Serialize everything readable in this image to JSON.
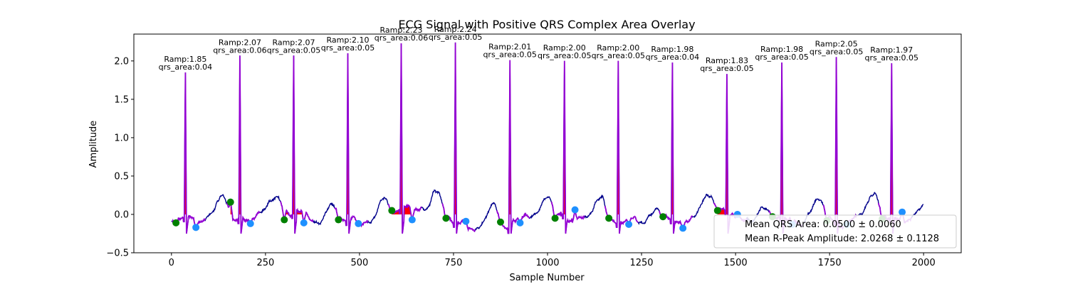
{
  "chart_data": {
    "type": "line",
    "title": "ECG Signal with Positive QRS Complex Area Overlay",
    "xlabel": "Sample Number",
    "ylabel": "Amplitude",
    "xlim": [
      -100,
      2100
    ],
    "ylim": [
      -0.5,
      2.35
    ],
    "xticks": [
      0,
      250,
      500,
      750,
      1000,
      1250,
      1500,
      1750,
      2000
    ],
    "yticks": [
      -0.5,
      0.0,
      0.5,
      1.0,
      1.5,
      2.0
    ],
    "xtick_labels": [
      "0",
      "250",
      "500",
      "750",
      "1000",
      "1250",
      "1500",
      "1750",
      "2000"
    ],
    "ytick_labels": [
      "−0.5",
      "0.0",
      "0.5",
      "1.0",
      "1.5",
      "2.0"
    ],
    "grid": false,
    "colors": {
      "signal": "#00008b",
      "qrs_segment": "#9400d3",
      "qrs_area": "#ff0000",
      "onset_marker": "#008000",
      "offset_marker": "#1e90ff"
    },
    "beats": [
      {
        "r_x": 37,
        "r_amp": 1.85,
        "area": 0.04,
        "onset_x": 12,
        "onset_y": -0.11,
        "offset_x": 65,
        "offset_y": -0.17,
        "label_amp": "Ramp:1.85",
        "label_area": "qrs_area:0.04"
      },
      {
        "r_x": 182,
        "r_amp": 2.07,
        "area": 0.06,
        "onset_x": 157,
        "onset_y": 0.16,
        "offset_x": 210,
        "offset_y": -0.12,
        "label_amp": "Ramp:2.07",
        "label_area": "qrs_area:0.06"
      },
      {
        "r_x": 325,
        "r_amp": 2.07,
        "area": 0.05,
        "onset_x": 300,
        "onset_y": -0.07,
        "offset_x": 352,
        "offset_y": -0.11,
        "label_amp": "Ramp:2.07",
        "label_area": "qrs_area:0.05"
      },
      {
        "r_x": 469,
        "r_amp": 2.1,
        "area": 0.05,
        "onset_x": 444,
        "onset_y": -0.07,
        "offset_x": 497,
        "offset_y": -0.12,
        "label_amp": "Ramp:2.10",
        "label_area": "qrs_area:0.05"
      },
      {
        "r_x": 611,
        "r_amp": 2.23,
        "area": 0.06,
        "onset_x": 586,
        "onset_y": 0.05,
        "offset_x": 640,
        "offset_y": -0.07,
        "label_amp": "Ramp:2.23",
        "label_area": "qrs_area:0.06"
      },
      {
        "r_x": 755,
        "r_amp": 2.24,
        "area": 0.05,
        "onset_x": 730,
        "onset_y": -0.05,
        "offset_x": 783,
        "offset_y": -0.09,
        "label_amp": "Ramp:2.24",
        "label_area": "qrs_area:0.05"
      },
      {
        "r_x": 900,
        "r_amp": 2.01,
        "area": 0.05,
        "onset_x": 875,
        "onset_y": -0.1,
        "offset_x": 927,
        "offset_y": -0.11,
        "label_amp": "Ramp:2.01",
        "label_area": "qrs_area:0.05"
      },
      {
        "r_x": 1045,
        "r_amp": 2.0,
        "area": 0.05,
        "onset_x": 1020,
        "onset_y": -0.05,
        "offset_x": 1073,
        "offset_y": 0.06,
        "label_amp": "Ramp:2.00",
        "label_area": "qrs_area:0.05"
      },
      {
        "r_x": 1188,
        "r_amp": 2.0,
        "area": 0.05,
        "onset_x": 1163,
        "onset_y": -0.05,
        "offset_x": 1216,
        "offset_y": -0.13,
        "label_amp": "Ramp:2.00",
        "label_area": "qrs_area:0.05"
      },
      {
        "r_x": 1332,
        "r_amp": 1.98,
        "area": 0.04,
        "onset_x": 1307,
        "onset_y": -0.03,
        "offset_x": 1360,
        "offset_y": -0.18,
        "label_amp": "Ramp:1.98",
        "label_area": "qrs_area:0.04"
      },
      {
        "r_x": 1477,
        "r_amp": 1.83,
        "area": 0.05,
        "onset_x": 1452,
        "onset_y": 0.05,
        "offset_x": 1505,
        "offset_y": 0.0,
        "label_amp": "Ramp:1.83",
        "label_area": "qrs_area:0.05"
      },
      {
        "r_x": 1623,
        "r_amp": 1.98,
        "area": 0.05,
        "onset_x": 1598,
        "onset_y": -0.03,
        "offset_x": 1651,
        "offset_y": -0.13,
        "label_amp": "Ramp:1.98",
        "label_area": "qrs_area:0.05"
      },
      {
        "r_x": 1768,
        "r_amp": 2.05,
        "area": 0.05,
        "onset_x": 1743,
        "onset_y": -0.08,
        "offset_x": 1796,
        "offset_y": -0.13,
        "label_amp": "Ramp:2.05",
        "label_area": "qrs_area:0.05"
      },
      {
        "r_x": 1915,
        "r_amp": 1.97,
        "area": 0.05,
        "onset_x": 1890,
        "onset_y": -0.06,
        "offset_x": 1943,
        "offset_y": 0.03,
        "label_amp": "Ramp:1.97",
        "label_area": "qrs_area:0.05"
      }
    ],
    "legend": {
      "placement": "lower right",
      "entries": [
        "Mean QRS Area: 0.0500 ± 0.0060",
        "Mean R-Peak Amplitude: 2.0268 ± 0.1128"
      ]
    }
  }
}
